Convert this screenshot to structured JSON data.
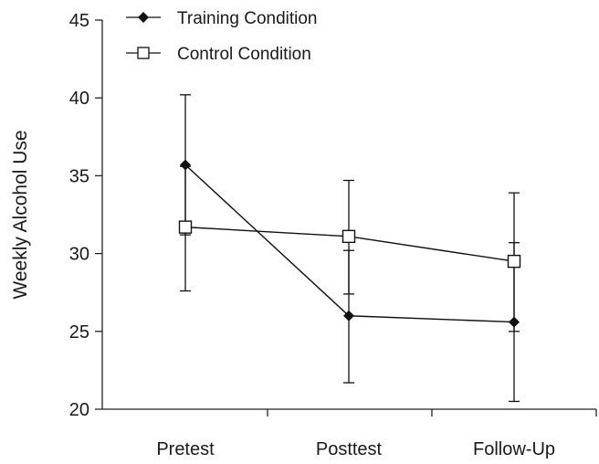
{
  "chart_data": {
    "type": "line",
    "title": "",
    "xlabel": "",
    "ylabel": "Weekly Alcohol Use",
    "categories": [
      "Pretest",
      "Posttest",
      "Follow-Up"
    ],
    "ylim": [
      20,
      45
    ],
    "yticks": [
      20,
      25,
      30,
      35,
      40,
      45
    ],
    "grid": false,
    "legend_position": "top-left",
    "series": [
      {
        "name": "Training Condition",
        "marker": "filled-diamond",
        "color": "#111111",
        "values": [
          35.7,
          26.0,
          25.6
        ],
        "error_low": [
          31.2,
          21.7,
          20.5
        ],
        "error_high": [
          40.2,
          30.2,
          30.7
        ]
      },
      {
        "name": "Control Condition",
        "marker": "open-square",
        "color": "#111111",
        "values": [
          31.7,
          31.1,
          29.5
        ],
        "error_low": [
          27.6,
          27.4,
          25.0
        ],
        "error_high": [
          35.6,
          34.7,
          33.9
        ]
      }
    ]
  }
}
